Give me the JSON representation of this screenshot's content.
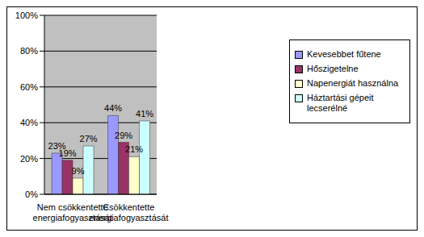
{
  "chart_data": {
    "type": "bar",
    "categories": [
      "Nem csökkentette energiafogyasztását",
      "Csökkentette energiafogyasztását"
    ],
    "series": [
      {
        "name": "Kevesebbet fűtene",
        "color": "#9999FF",
        "values": [
          23,
          44
        ],
        "value_labels": [
          "23%",
          "44%"
        ]
      },
      {
        "name": "Hőszigetelne",
        "color": "#993366",
        "values": [
          19,
          29
        ],
        "value_labels": [
          "19%",
          "29%"
        ]
      },
      {
        "name": "Napenergiát használna",
        "color": "#FFFFCC",
        "values": [
          9,
          21
        ],
        "value_labels": [
          "9%",
          "21%"
        ]
      },
      {
        "name": "Háztartási gépeit lecserélné",
        "color": "#CCFFFF",
        "values": [
          27,
          41
        ],
        "value_labels": [
          "27%",
          "41%"
        ]
      }
    ],
    "ylim": [
      0,
      100
    ],
    "yticks": [
      {
        "value": 0,
        "label": "0%"
      },
      {
        "value": 20,
        "label": "20%"
      },
      {
        "value": 40,
        "label": "40%"
      },
      {
        "value": 60,
        "label": "60%"
      },
      {
        "value": 80,
        "label": "80%"
      },
      {
        "value": 100,
        "label": "100%"
      }
    ],
    "grid": true,
    "legend": "right",
    "data_labels": true
  }
}
